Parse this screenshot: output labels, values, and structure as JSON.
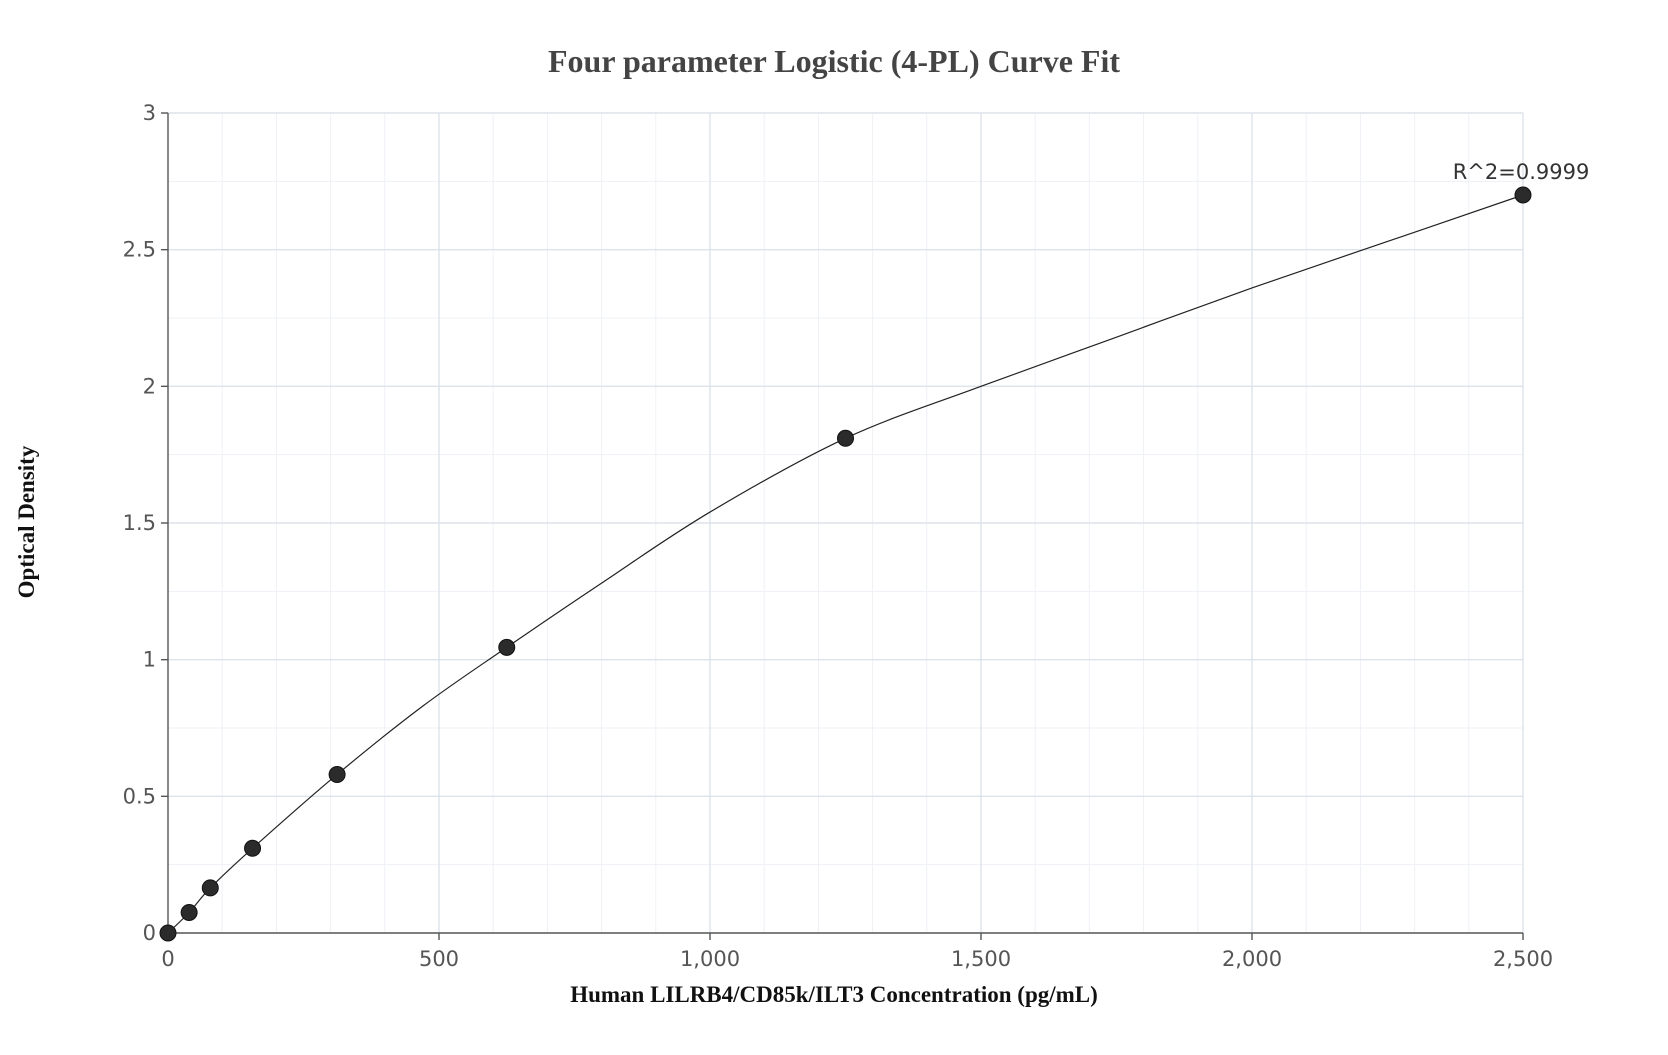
{
  "chart_data": {
    "type": "scatter",
    "title": "Four parameter Logistic (4-PL) Curve Fit",
    "xlabel": "Human LILRB4/CD85k/ILT3 Concentration (pg/mL)",
    "ylabel": "Optical Density",
    "xlim": [
      0,
      2500
    ],
    "ylim": [
      0,
      3
    ],
    "x_ticks": [
      0,
      500,
      1000,
      1500,
      2000,
      2500
    ],
    "x_tick_labels": [
      "0",
      "500",
      "1,000",
      "1,500",
      "2,000",
      "2,500"
    ],
    "y_ticks": [
      0,
      0.5,
      1,
      1.5,
      2,
      2.5,
      3
    ],
    "y_tick_labels": [
      "0",
      "0.5",
      "1",
      "1.5",
      "2",
      "2.5",
      "3"
    ],
    "grid": true,
    "minor_x_step": 100,
    "minor_y_step": 0.25,
    "series": [
      {
        "points": [
          {
            "x": 0,
            "y": 0.0
          },
          {
            "x": 39,
            "y": 0.075
          },
          {
            "x": 78,
            "y": 0.165
          },
          {
            "x": 156,
            "y": 0.31
          },
          {
            "x": 312,
            "y": 0.58
          },
          {
            "x": 625,
            "y": 1.045
          },
          {
            "x": 1250,
            "y": 1.81
          },
          {
            "x": 2500,
            "y": 2.7
          }
        ]
      }
    ],
    "fit_curve": {
      "model": "4-PL",
      "x": [
        0,
        39,
        78,
        156,
        312,
        470,
        625,
        800,
        1000,
        1250,
        1500,
        1750,
        2000,
        2250,
        2500
      ],
      "y": [
        0.0,
        0.075,
        0.165,
        0.31,
        0.58,
        0.83,
        1.045,
        1.28,
        1.54,
        1.81,
        2.0,
        2.18,
        2.36,
        2.53,
        2.7
      ]
    },
    "annotations": [
      {
        "text": "R^2=0.9999",
        "x": 2500,
        "y": 2.7
      }
    ],
    "colors": {
      "point": "#2b2b2b",
      "curve": "#222222",
      "grid_major": "#dde3ec",
      "grid_minor": "#eef1f6"
    }
  }
}
